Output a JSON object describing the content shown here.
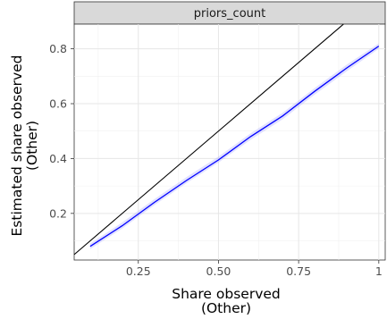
{
  "chart_data": {
    "type": "line",
    "facet_label": "priors_count",
    "xlabel_line1": "Share observed",
    "xlabel_line2": "(Other)",
    "ylabel_line1": "Estimated share observed",
    "ylabel_line2": "(Other)",
    "xlim": [
      0.05,
      1.02
    ],
    "ylim": [
      0.03,
      0.89
    ],
    "x_ticks": [
      0.25,
      0.5,
      0.75,
      1.0
    ],
    "x_tick_labels": [
      "0.25",
      "0.50",
      "0.75",
      "1"
    ],
    "y_ticks": [
      0.2,
      0.4,
      0.6,
      0.8
    ],
    "y_tick_labels": [
      "0.2",
      "0.4",
      "0.6",
      "0.8"
    ],
    "grid": true,
    "reference_line": {
      "type": "identity",
      "color": "#000000"
    },
    "series": [
      {
        "color": "#0000ff",
        "band_color": "#aaaaff",
        "x": [
          0.1,
          0.2,
          0.3,
          0.4,
          0.5,
          0.6,
          0.7,
          0.8,
          0.9,
          1.0
        ],
        "y": [
          0.08,
          0.155,
          0.24,
          0.32,
          0.395,
          0.48,
          0.555,
          0.645,
          0.73,
          0.81
        ],
        "lower": [
          0.07,
          0.145,
          0.23,
          0.31,
          0.385,
          0.468,
          0.543,
          0.633,
          0.718,
          0.8
        ],
        "upper": [
          0.09,
          0.167,
          0.252,
          0.332,
          0.407,
          0.492,
          0.567,
          0.657,
          0.742,
          0.82
        ]
      }
    ]
  }
}
